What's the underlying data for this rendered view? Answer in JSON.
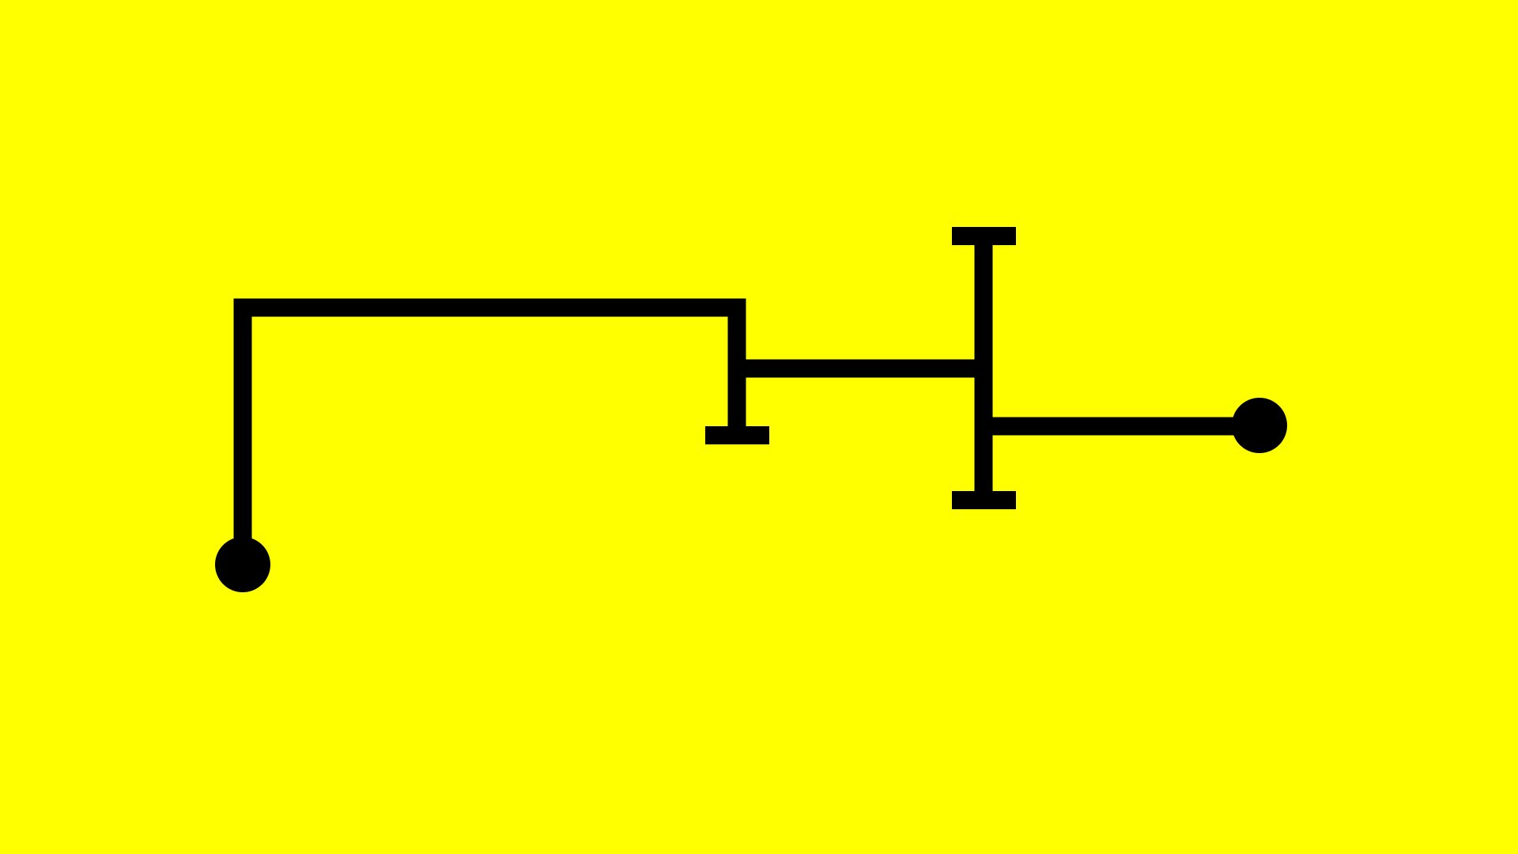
{
  "colors": {
    "background": "#FFFF00",
    "ink": "#000000"
  },
  "diagram": {
    "elements": [
      {
        "name": "terminal-left",
        "kind": "terminal-dot"
      },
      {
        "name": "wire-left-loop",
        "kind": "wire"
      },
      {
        "name": "end-cap-middle",
        "kind": "end-cap"
      },
      {
        "name": "wire-middle-bridge",
        "kind": "wire"
      },
      {
        "name": "vertical-bar",
        "kind": "wire"
      },
      {
        "name": "end-cap-top",
        "kind": "end-cap"
      },
      {
        "name": "end-cap-bottom",
        "kind": "end-cap"
      },
      {
        "name": "wire-right",
        "kind": "wire"
      },
      {
        "name": "terminal-right",
        "kind": "terminal-dot"
      }
    ]
  }
}
